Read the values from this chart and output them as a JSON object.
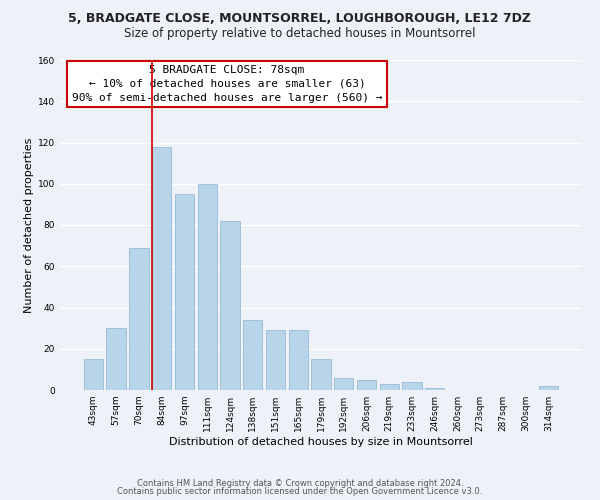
{
  "title": "5, BRADGATE CLOSE, MOUNTSORREL, LOUGHBOROUGH, LE12 7DZ",
  "subtitle": "Size of property relative to detached houses in Mountsorrel",
  "xlabel": "Distribution of detached houses by size in Mountsorrel",
  "ylabel": "Number of detached properties",
  "bar_color": "#b8d4e8",
  "bar_edge_color": "#8ab4d0",
  "background_color": "#eef2f8",
  "grid_color": "white",
  "bin_labels": [
    "43sqm",
    "57sqm",
    "70sqm",
    "84sqm",
    "97sqm",
    "111sqm",
    "124sqm",
    "138sqm",
    "151sqm",
    "165sqm",
    "179sqm",
    "192sqm",
    "206sqm",
    "219sqm",
    "233sqm",
    "246sqm",
    "260sqm",
    "273sqm",
    "287sqm",
    "300sqm",
    "314sqm"
  ],
  "bar_heights": [
    15,
    30,
    69,
    118,
    95,
    100,
    82,
    34,
    29,
    29,
    15,
    6,
    5,
    3,
    4,
    1,
    0,
    0,
    0,
    0,
    2
  ],
  "ylim": [
    0,
    160
  ],
  "yticks": [
    0,
    20,
    40,
    60,
    80,
    100,
    120,
    140,
    160
  ],
  "annotation_line1": "5 BRADGATE CLOSE: 78sqm",
  "annotation_line2": "← 10% of detached houses are smaller (63)",
  "annotation_line3": "90% of semi-detached houses are larger (560) →",
  "annotation_box_color": "#ffffff",
  "annotation_box_edge_color": "#cc0000",
  "vline_color": "#cc0000",
  "vline_x_index": 2.57,
  "footer_line1": "Contains HM Land Registry data © Crown copyright and database right 2024.",
  "footer_line2": "Contains public sector information licensed under the Open Government Licence v3.0.",
  "title_fontsize": 9,
  "subtitle_fontsize": 8.5,
  "axis_label_fontsize": 8,
  "tick_fontsize": 6.5,
  "annotation_fontsize": 8,
  "footer_fontsize": 6
}
